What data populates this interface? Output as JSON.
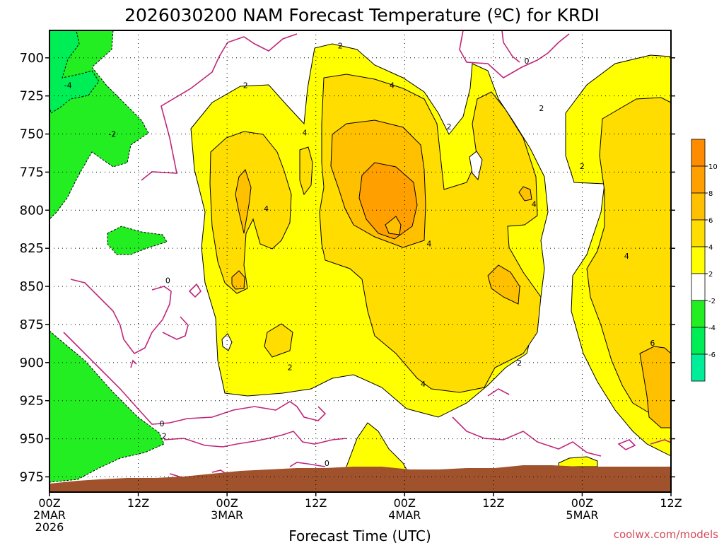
{
  "chart_data": {
    "type": "heatmap",
    "title": "2026030200 NAM Forecast Temperature (ºC) for KRDI",
    "xlabel": "Forecast Time (UTC)",
    "ylabel": "",
    "credit": "coolwx.com/models",
    "y_ticks": [
      "700",
      "725",
      "750",
      "775",
      "800",
      "825",
      "850",
      "875",
      "900",
      "925",
      "950",
      "975"
    ],
    "y_values_hpa": [
      700,
      725,
      750,
      775,
      800,
      825,
      850,
      875,
      900,
      925,
      950,
      975
    ],
    "y_axis_inverted": true,
    "x_ticks": [
      {
        "hour": 0,
        "lines": [
          "00Z",
          "2MAR",
          "2026"
        ]
      },
      {
        "hour": 12,
        "lines": [
          "12Z"
        ]
      },
      {
        "hour": 24,
        "lines": [
          "00Z",
          "3MAR"
        ]
      },
      {
        "hour": 36,
        "lines": [
          "12Z"
        ]
      },
      {
        "hour": 48,
        "lines": [
          "00Z",
          "4MAR"
        ]
      },
      {
        "hour": 60,
        "lines": [
          "12Z"
        ]
      },
      {
        "hour": 72,
        "lines": [
          "00Z",
          "5MAR"
        ]
      },
      {
        "hour": 84,
        "lines": [
          "12Z"
        ]
      }
    ],
    "xlim_hours": [
      0,
      84
    ],
    "ylim_hpa": [
      682,
      985
    ],
    "grid": true,
    "colorbar": {
      "bins": [
        {
          "from": 10,
          "to": 12,
          "color": "#ff8c00"
        },
        {
          "from": 8,
          "to": 10,
          "color": "#ffa000"
        },
        {
          "from": 6,
          "to": 8,
          "color": "#ffc000"
        },
        {
          "from": 4,
          "to": 6,
          "color": "#ffdd00"
        },
        {
          "from": 2,
          "to": 4,
          "color": "#ffff00"
        },
        {
          "from": -2,
          "to": 2,
          "color": "#ffffff"
        },
        {
          "from": -4,
          "to": -2,
          "color": "#22ee22"
        },
        {
          "from": -6,
          "to": -4,
          "color": "#00ee55"
        },
        {
          "from": -8,
          "to": -6,
          "color": "#00ee99"
        }
      ],
      "tick_labels": [
        "10",
        "8",
        "6",
        "4",
        "2",
        "-2",
        "-4",
        "-6"
      ]
    },
    "contour_labels": [
      {
        "text": "-4",
        "hour": 2.5,
        "hpa": 718
      },
      {
        "text": "-2",
        "hour": 8.5,
        "hpa": 750
      },
      {
        "text": "2",
        "hour": 26.5,
        "hpa": 718
      },
      {
        "text": "4",
        "hour": 34.5,
        "hpa": 749
      },
      {
        "text": "4",
        "hour": 29.3,
        "hpa": 799
      },
      {
        "text": "0",
        "hour": 16,
        "hpa": 846
      },
      {
        "text": "2",
        "hour": 32.5,
        "hpa": 903
      },
      {
        "text": "0",
        "hour": 15.2,
        "hpa": 940
      },
      {
        "text": "2",
        "hour": 15.5,
        "hpa": 948
      },
      {
        "text": "0",
        "hour": 37.5,
        "hpa": 966
      },
      {
        "text": "2",
        "hour": 39.3,
        "hpa": 692
      },
      {
        "text": "4",
        "hour": 46.3,
        "hpa": 718
      },
      {
        "text": "2",
        "hour": 54,
        "hpa": 745
      },
      {
        "text": "4",
        "hour": 51.3,
        "hpa": 822
      },
      {
        "text": "4",
        "hour": 50.5,
        "hpa": 914
      },
      {
        "text": "2",
        "hour": 63.5,
        "hpa": 900
      },
      {
        "text": "0",
        "hour": 64.5,
        "hpa": 702
      },
      {
        "text": "2",
        "hour": 66.5,
        "hpa": 733
      },
      {
        "text": "4",
        "hour": 65.5,
        "hpa": 796
      },
      {
        "text": "2",
        "hour": 72,
        "hpa": 771
      },
      {
        "text": "4",
        "hour": 78,
        "hpa": 830
      },
      {
        "text": "6",
        "hour": 81.5,
        "hpa": 887
      }
    ]
  }
}
